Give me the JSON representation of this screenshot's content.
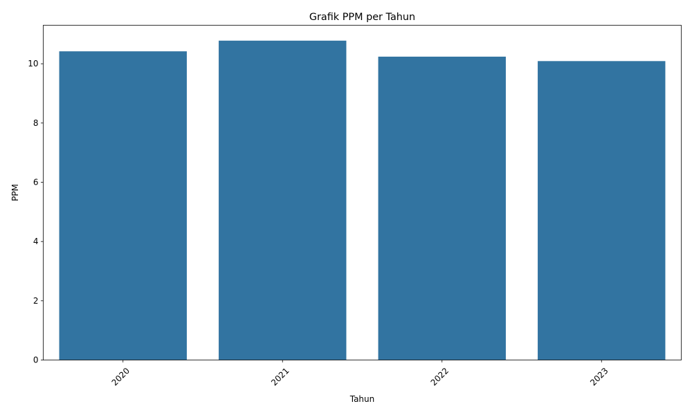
{
  "chart_data": {
    "type": "bar",
    "title": "Grafik PPM per Tahun",
    "xlabel": "Tahun",
    "ylabel": "PPM",
    "categories": [
      "2020",
      "2021",
      "2022",
      "2023"
    ],
    "values": [
      10.42,
      10.78,
      10.24,
      10.09
    ],
    "ylim": [
      0,
      11.3
    ],
    "yticks": [
      0,
      2,
      4,
      6,
      8,
      10
    ],
    "x_tick_rotation_deg": 45,
    "grid": false,
    "legend": "none",
    "bar_color": "#3274a1"
  }
}
